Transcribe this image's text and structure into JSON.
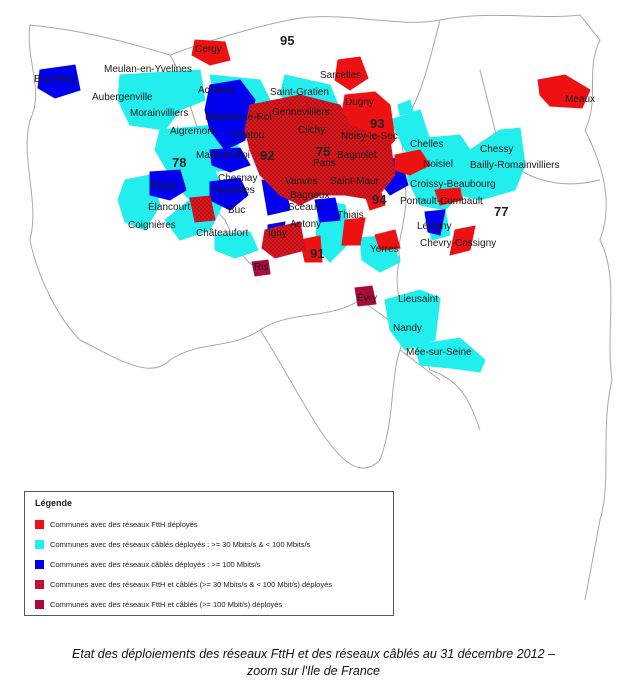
{
  "map": {
    "departments": [
      "95",
      "78",
      "92",
      "93",
      "75",
      "94",
      "91",
      "77"
    ],
    "communes": [
      "Cergy",
      "Sarcelles",
      "Meaux",
      "Bucheley",
      "Meulan-en-Yvelines",
      "Aubergenville",
      "Achères",
      "Saint-Gratien",
      "Dugny",
      "Gennevilliers",
      "Morainvilliers",
      "Maisons-le-Roi",
      "Aigremont",
      "Chatou",
      "Clichy",
      "Noisy-le-Sec",
      "Chelles",
      "Chessy",
      "Marly-le-Roi",
      "Bagnolet",
      "Paris",
      "Noisiel",
      "Bailly-Romainvilliers",
      "Vanves",
      "Saint-Maur",
      "Croissy-Beaubourg",
      "Plaisir",
      "Chesnay",
      "Versailles",
      "Pontault-Combault",
      "Élancourt",
      "Buc",
      "Bagneux",
      "Sceaux",
      "Coignières",
      "Châteaufort",
      "Igny",
      "Antony",
      "Thiais",
      "Lésigny",
      "Chevry-Cossigny",
      "Yerres",
      "Ris",
      "Évry",
      "Lieusaint",
      "Nandy",
      "Mée-sur-Seine"
    ],
    "colors": {
      "ftth": "#ee1111",
      "cable_low": "#22eeee",
      "cable_high": "#0000ee",
      "mixed": "#cc1133",
      "mixed_high": "#aa0a3c"
    }
  },
  "legend": {
    "title": "Légende",
    "items": [
      {
        "label": "Communes avec des réseaux FttH déployés",
        "color": "#ee1111"
      },
      {
        "label": "Communes avec des réseaux câblés déployés : >= 30 Mbits/s & < 100 Mbits/s",
        "color": "#22eeee"
      },
      {
        "label": "Communes avec des réseaux câblés déployés : >= 100 Mbits/s",
        "color": "#0000ee"
      },
      {
        "label": "Communes avec des réseaux FttH et câblés (>= 30 Mbits/s & < 100 Mbit/s) déployés",
        "color": "#cc1133"
      },
      {
        "label": "Communes avec des réseaux FttH et câblés (>= 100 Mbit/s) déployés",
        "color": "#aa0a3c"
      }
    ]
  },
  "caption": {
    "line1": "Etat des déploiements des réseaux FttH et des réseaux câblés au 31 décembre 2012 –",
    "line2": "zoom sur l'Ile de France"
  }
}
